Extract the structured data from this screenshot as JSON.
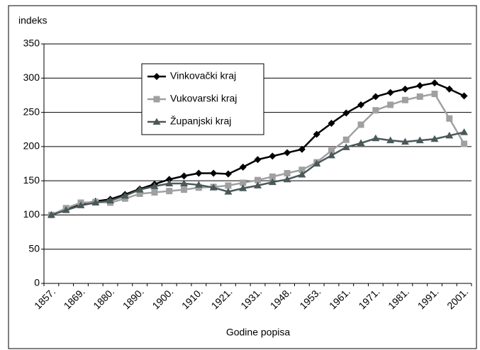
{
  "chart_data": {
    "type": "line",
    "ylabel": "indeks",
    "xlabel": "Godine popisa",
    "categories": [
      "1857.",
      null,
      "1869.",
      null,
      "1880.",
      null,
      "1890.",
      null,
      "1900.",
      null,
      "1910.",
      null,
      "1921.",
      null,
      "1931.",
      null,
      "1948.",
      null,
      "1953.",
      null,
      "1961.",
      null,
      "1971.",
      null,
      "1981.",
      null,
      "1991.",
      null,
      "2001."
    ],
    "series": [
      {
        "name": "Vinkovački kraj",
        "color": "#000000",
        "marker": "diamond",
        "values": [
          100,
          108,
          116,
          120,
          123,
          130,
          138,
          145,
          152,
          157,
          161,
          161,
          160,
          170,
          181,
          186,
          191,
          196,
          218,
          234,
          249,
          261,
          273,
          279,
          284,
          289,
          293,
          284,
          274
        ]
      },
      {
        "name": "Vukovarski kraj",
        "color": "#a0a0a0",
        "marker": "square",
        "values": [
          100,
          110,
          118,
          119,
          118,
          124,
          131,
          133,
          135,
          137,
          140,
          141,
          143,
          147,
          151,
          156,
          161,
          166,
          177,
          194,
          210,
          232,
          253,
          261,
          268,
          273,
          277,
          241,
          204
        ]
      },
      {
        "name": "Županjski kraj",
        "color": "#4a5858",
        "marker": "triangle",
        "values": [
          100,
          107,
          114,
          118,
          121,
          128,
          137,
          142,
          146,
          146,
          144,
          140,
          134,
          139,
          143,
          148,
          152,
          159,
          175,
          187,
          199,
          205,
          212,
          209,
          207,
          209,
          211,
          216,
          221
        ]
      }
    ],
    "ylim": [
      0,
      350
    ],
    "yticks": [
      0,
      50,
      100,
      150,
      200,
      250,
      300,
      350
    ],
    "grid": true,
    "legend": "upper-left"
  }
}
